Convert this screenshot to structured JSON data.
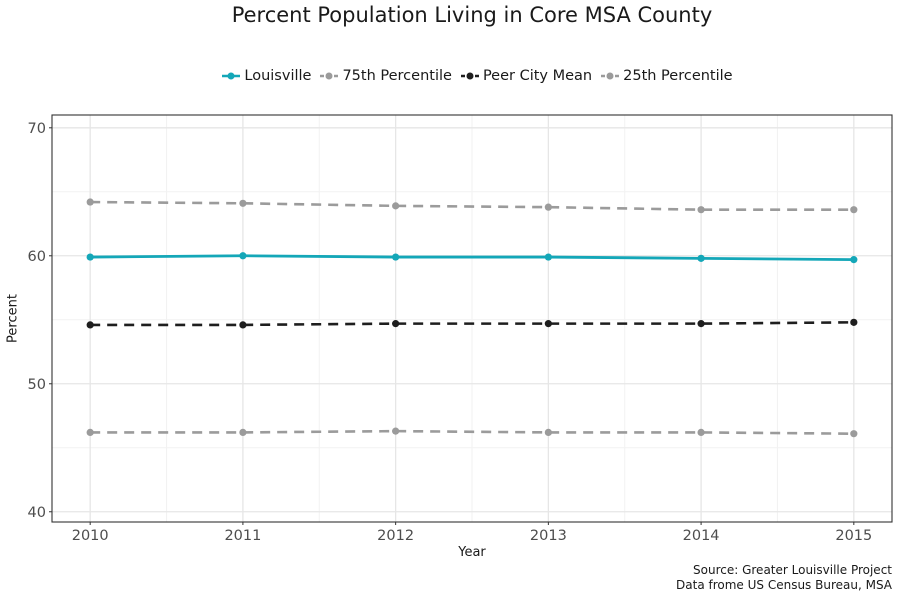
{
  "chart_data": {
    "type": "line",
    "title": "Percent Population Living in Core MSA County",
    "xlabel": "Year",
    "ylabel": "Percent",
    "x": [
      2010,
      2011,
      2012,
      2013,
      2014,
      2015
    ],
    "xlim": [
      2009.75,
      2015.25
    ],
    "ylim": [
      39.2,
      71
    ],
    "yticks": [
      40,
      50,
      60,
      70
    ],
    "grid": true,
    "legend_position": "top",
    "series": [
      {
        "name": "Louisville",
        "color": "#14a7b8",
        "dashed": false,
        "values": [
          59.9,
          60.0,
          59.9,
          59.9,
          59.8,
          59.7
        ]
      },
      {
        "name": "75th Percentile",
        "color": "#9b9b9b",
        "dashed": true,
        "values": [
          64.2,
          64.1,
          63.9,
          63.8,
          63.6,
          63.6
        ]
      },
      {
        "name": "Peer City Mean",
        "color": "#1e1e1e",
        "dashed": true,
        "values": [
          54.6,
          54.6,
          54.7,
          54.7,
          54.7,
          54.8
        ]
      },
      {
        "name": "25th Percentile",
        "color": "#9b9b9b",
        "dashed": true,
        "values": [
          46.2,
          46.2,
          46.3,
          46.2,
          46.2,
          46.1
        ]
      }
    ],
    "caption": [
      "Source: Greater Louisville Project",
      "Data frome US Census Bureau, MSA"
    ]
  }
}
